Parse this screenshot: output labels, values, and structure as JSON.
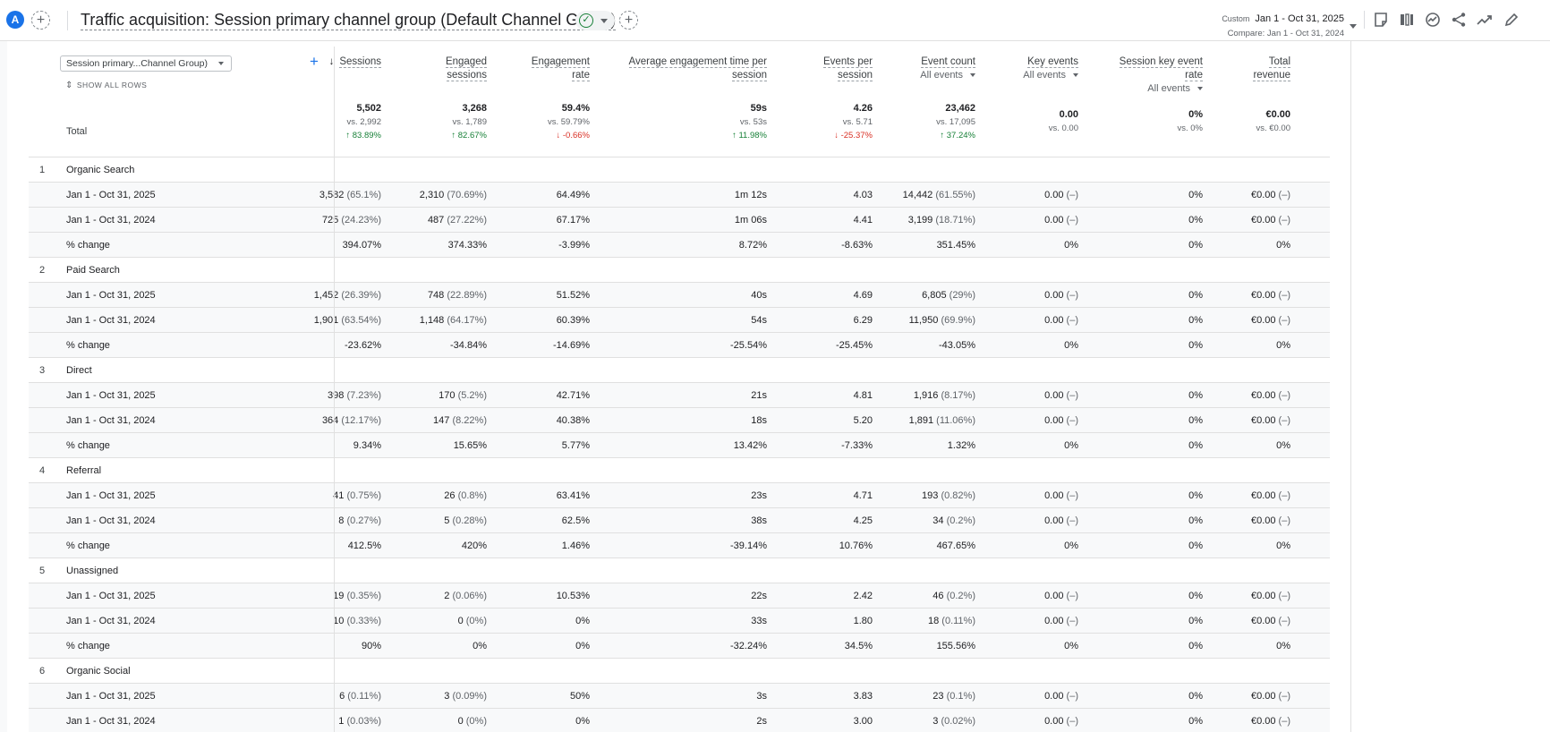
{
  "header": {
    "avatar_letter": "A",
    "title": "Traffic acquisition: Session primary channel group (Default Channel Group)",
    "date_type": "Custom",
    "date_range": "Jan 1 - Oct 31, 2025",
    "compare_range": "Compare: Jan 1 - Oct 31, 2024",
    "icons": [
      "add-comparison-icon",
      "customize-report-icon",
      "compare-columns-icon",
      "insights-icon",
      "share-icon",
      "trend-icon",
      "edit-icon"
    ]
  },
  "table": {
    "dimension_select": "Session primary...Channel Group)",
    "show_all_rows": "SHOW ALL ROWS",
    "total_label": "Total",
    "columns": [
      {
        "label": "Sessions",
        "label2": "",
        "sub": ""
      },
      {
        "label": "Engaged",
        "label2": "sessions",
        "sub": ""
      },
      {
        "label": "Engagement",
        "label2": "rate",
        "sub": ""
      },
      {
        "label": "Average engagement time per",
        "label2": "session",
        "sub": ""
      },
      {
        "label": "Events per",
        "label2": "session",
        "sub": ""
      },
      {
        "label": "Event count",
        "label2": "",
        "sub": "All events"
      },
      {
        "label": "Key events",
        "label2": "",
        "sub": "All events"
      },
      {
        "label": "Session key event",
        "label2": "rate",
        "sub": "All events"
      },
      {
        "label": "Total",
        "label2": "revenue",
        "sub": ""
      }
    ],
    "totals": [
      {
        "v": "5,502",
        "vs": "vs. 2,992",
        "chg": "↑ 83.89%",
        "dir": "up"
      },
      {
        "v": "3,268",
        "vs": "vs. 1,789",
        "chg": "↑ 82.67%",
        "dir": "up"
      },
      {
        "v": "59.4%",
        "vs": "vs. 59.79%",
        "chg": "↓ -0.66%",
        "dir": "down"
      },
      {
        "v": "59s",
        "vs": "vs. 53s",
        "chg": "↑ 11.98%",
        "dir": "up"
      },
      {
        "v": "4.26",
        "vs": "vs. 5.71",
        "chg": "↓ -25.37%",
        "dir": "down"
      },
      {
        "v": "23,462",
        "vs": "vs. 17,095",
        "chg": "↑ 37.24%",
        "dir": "up"
      },
      {
        "v": "0.00",
        "vs": "vs. 0.00",
        "chg": "",
        "dir": ""
      },
      {
        "v": "0%",
        "vs": "vs. 0%",
        "chg": "",
        "dir": ""
      },
      {
        "v": "€0.00",
        "vs": "vs. €0.00",
        "chg": "",
        "dir": ""
      }
    ],
    "groups": [
      {
        "num": "1",
        "name": "Organic Search",
        "rows": [
          {
            "label": "Jan 1 - Oct 31, 2025",
            "cells": [
              [
                "3,582",
                "(65.1%)"
              ],
              [
                "2,310",
                "(70.69%)"
              ],
              [
                "64.49%",
                ""
              ],
              [
                "1m 12s",
                ""
              ],
              [
                "4.03",
                ""
              ],
              [
                "14,442",
                "(61.55%)"
              ],
              [
                "0.00",
                "(–)"
              ],
              [
                "0%",
                ""
              ],
              [
                "€0.00",
                "(–)"
              ]
            ]
          },
          {
            "label": "Jan 1 - Oct 31, 2024",
            "cells": [
              [
                "725",
                "(24.23%)"
              ],
              [
                "487",
                "(27.22%)"
              ],
              [
                "67.17%",
                ""
              ],
              [
                "1m 06s",
                ""
              ],
              [
                "4.41",
                ""
              ],
              [
                "3,199",
                "(18.71%)"
              ],
              [
                "0.00",
                "(–)"
              ],
              [
                "0%",
                ""
              ],
              [
                "€0.00",
                "(–)"
              ]
            ]
          },
          {
            "label": "% change",
            "cells": [
              [
                "394.07%",
                ""
              ],
              [
                "374.33%",
                ""
              ],
              [
                "-3.99%",
                ""
              ],
              [
                "8.72%",
                ""
              ],
              [
                "-8.63%",
                ""
              ],
              [
                "351.45%",
                ""
              ],
              [
                "0%",
                ""
              ],
              [
                "0%",
                ""
              ],
              [
                "0%",
                ""
              ]
            ]
          }
        ]
      },
      {
        "num": "2",
        "name": "Paid Search",
        "rows": [
          {
            "label": "Jan 1 - Oct 31, 2025",
            "cells": [
              [
                "1,452",
                "(26.39%)"
              ],
              [
                "748",
                "(22.89%)"
              ],
              [
                "51.52%",
                ""
              ],
              [
                "40s",
                ""
              ],
              [
                "4.69",
                ""
              ],
              [
                "6,805",
                "(29%)"
              ],
              [
                "0.00",
                "(–)"
              ],
              [
                "0%",
                ""
              ],
              [
                "€0.00",
                "(–)"
              ]
            ]
          },
          {
            "label": "Jan 1 - Oct 31, 2024",
            "cells": [
              [
                "1,901",
                "(63.54%)"
              ],
              [
                "1,148",
                "(64.17%)"
              ],
              [
                "60.39%",
                ""
              ],
              [
                "54s",
                ""
              ],
              [
                "6.29",
                ""
              ],
              [
                "11,950",
                "(69.9%)"
              ],
              [
                "0.00",
                "(–)"
              ],
              [
                "0%",
                ""
              ],
              [
                "€0.00",
                "(–)"
              ]
            ]
          },
          {
            "label": "% change",
            "cells": [
              [
                "-23.62%",
                ""
              ],
              [
                "-34.84%",
                ""
              ],
              [
                "-14.69%",
                ""
              ],
              [
                "-25.54%",
                ""
              ],
              [
                "-25.45%",
                ""
              ],
              [
                "-43.05%",
                ""
              ],
              [
                "0%",
                ""
              ],
              [
                "0%",
                ""
              ],
              [
                "0%",
                ""
              ]
            ]
          }
        ]
      },
      {
        "num": "3",
        "name": "Direct",
        "rows": [
          {
            "label": "Jan 1 - Oct 31, 2025",
            "cells": [
              [
                "398",
                "(7.23%)"
              ],
              [
                "170",
                "(5.2%)"
              ],
              [
                "42.71%",
                ""
              ],
              [
                "21s",
                ""
              ],
              [
                "4.81",
                ""
              ],
              [
                "1,916",
                "(8.17%)"
              ],
              [
                "0.00",
                "(–)"
              ],
              [
                "0%",
                ""
              ],
              [
                "€0.00",
                "(–)"
              ]
            ]
          },
          {
            "label": "Jan 1 - Oct 31, 2024",
            "cells": [
              [
                "364",
                "(12.17%)"
              ],
              [
                "147",
                "(8.22%)"
              ],
              [
                "40.38%",
                ""
              ],
              [
                "18s",
                ""
              ],
              [
                "5.20",
                ""
              ],
              [
                "1,891",
                "(11.06%)"
              ],
              [
                "0.00",
                "(–)"
              ],
              [
                "0%",
                ""
              ],
              [
                "€0.00",
                "(–)"
              ]
            ]
          },
          {
            "label": "% change",
            "cells": [
              [
                "9.34%",
                ""
              ],
              [
                "15.65%",
                ""
              ],
              [
                "5.77%",
                ""
              ],
              [
                "13.42%",
                ""
              ],
              [
                "-7.33%",
                ""
              ],
              [
                "1.32%",
                ""
              ],
              [
                "0%",
                ""
              ],
              [
                "0%",
                ""
              ],
              [
                "0%",
                ""
              ]
            ]
          }
        ]
      },
      {
        "num": "4",
        "name": "Referral",
        "rows": [
          {
            "label": "Jan 1 - Oct 31, 2025",
            "cells": [
              [
                "41",
                "(0.75%)"
              ],
              [
                "26",
                "(0.8%)"
              ],
              [
                "63.41%",
                ""
              ],
              [
                "23s",
                ""
              ],
              [
                "4.71",
                ""
              ],
              [
                "193",
                "(0.82%)"
              ],
              [
                "0.00",
                "(–)"
              ],
              [
                "0%",
                ""
              ],
              [
                "€0.00",
                "(–)"
              ]
            ]
          },
          {
            "label": "Jan 1 - Oct 31, 2024",
            "cells": [
              [
                "8",
                "(0.27%)"
              ],
              [
                "5",
                "(0.28%)"
              ],
              [
                "62.5%",
                ""
              ],
              [
                "38s",
                ""
              ],
              [
                "4.25",
                ""
              ],
              [
                "34",
                "(0.2%)"
              ],
              [
                "0.00",
                "(–)"
              ],
              [
                "0%",
                ""
              ],
              [
                "€0.00",
                "(–)"
              ]
            ]
          },
          {
            "label": "% change",
            "cells": [
              [
                "412.5%",
                ""
              ],
              [
                "420%",
                ""
              ],
              [
                "1.46%",
                ""
              ],
              [
                "-39.14%",
                ""
              ],
              [
                "10.76%",
                ""
              ],
              [
                "467.65%",
                ""
              ],
              [
                "0%",
                ""
              ],
              [
                "0%",
                ""
              ],
              [
                "0%",
                ""
              ]
            ]
          }
        ]
      },
      {
        "num": "5",
        "name": "Unassigned",
        "rows": [
          {
            "label": "Jan 1 - Oct 31, 2025",
            "cells": [
              [
                "19",
                "(0.35%)"
              ],
              [
                "2",
                "(0.06%)"
              ],
              [
                "10.53%",
                ""
              ],
              [
                "22s",
                ""
              ],
              [
                "2.42",
                ""
              ],
              [
                "46",
                "(0.2%)"
              ],
              [
                "0.00",
                "(–)"
              ],
              [
                "0%",
                ""
              ],
              [
                "€0.00",
                "(–)"
              ]
            ]
          },
          {
            "label": "Jan 1 - Oct 31, 2024",
            "cells": [
              [
                "10",
                "(0.33%)"
              ],
              [
                "0",
                "(0%)"
              ],
              [
                "0%",
                ""
              ],
              [
                "33s",
                ""
              ],
              [
                "1.80",
                ""
              ],
              [
                "18",
                "(0.11%)"
              ],
              [
                "0.00",
                "(–)"
              ],
              [
                "0%",
                ""
              ],
              [
                "€0.00",
                "(–)"
              ]
            ]
          },
          {
            "label": "% change",
            "cells": [
              [
                "90%",
                ""
              ],
              [
                "0%",
                ""
              ],
              [
                "0%",
                ""
              ],
              [
                "-32.24%",
                ""
              ],
              [
                "34.5%",
                ""
              ],
              [
                "155.56%",
                ""
              ],
              [
                "0%",
                ""
              ],
              [
                "0%",
                ""
              ],
              [
                "0%",
                ""
              ]
            ]
          }
        ]
      },
      {
        "num": "6",
        "name": "Organic Social",
        "rows": [
          {
            "label": "Jan 1 - Oct 31, 2025",
            "cells": [
              [
                "6",
                "(0.11%)"
              ],
              [
                "3",
                "(0.09%)"
              ],
              [
                "50%",
                ""
              ],
              [
                "3s",
                ""
              ],
              [
                "3.83",
                ""
              ],
              [
                "23",
                "(0.1%)"
              ],
              [
                "0.00",
                "(–)"
              ],
              [
                "0%",
                ""
              ],
              [
                "€0.00",
                "(–)"
              ]
            ]
          },
          {
            "label": "Jan 1 - Oct 31, 2024",
            "cells": [
              [
                "1",
                "(0.03%)"
              ],
              [
                "0",
                "(0%)"
              ],
              [
                "0%",
                ""
              ],
              [
                "2s",
                ""
              ],
              [
                "3.00",
                ""
              ],
              [
                "3",
                "(0.02%)"
              ],
              [
                "0.00",
                "(–)"
              ],
              [
                "0%",
                ""
              ],
              [
                "€0.00",
                "(–)"
              ]
            ]
          }
        ]
      }
    ]
  }
}
